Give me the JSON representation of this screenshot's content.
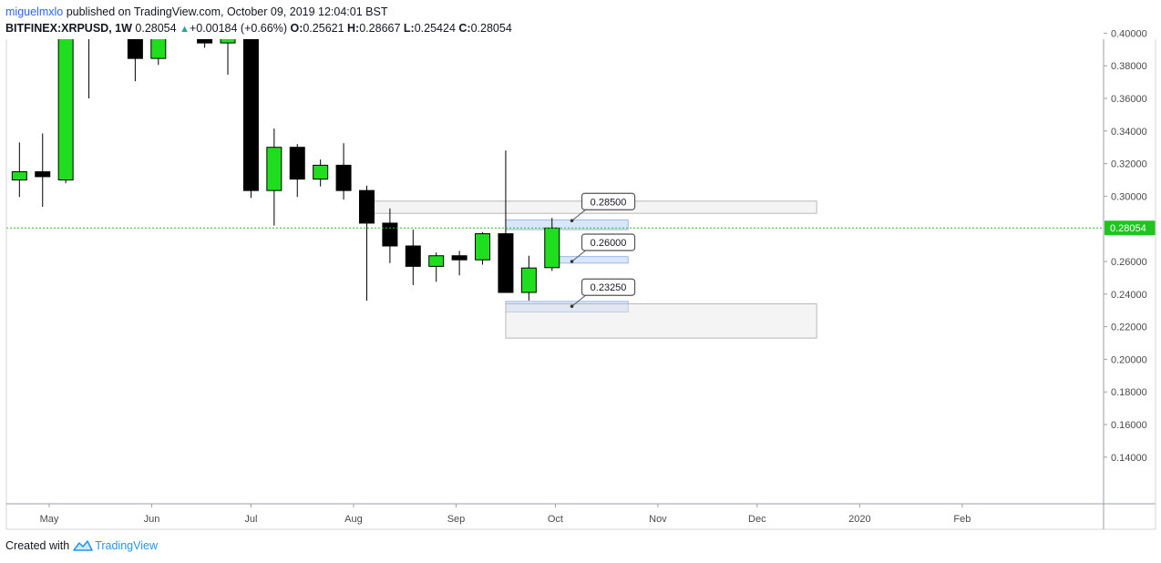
{
  "header": {
    "author": "miguelmxlo",
    "published_text": " published on TradingView.com, October 09, 2019 12:04:01 BST",
    "symbol": "BITFINEX:XRPUSD",
    "interval": ", 1W",
    "price": "0.28054",
    "change_arrow": "▲",
    "change": "+0.00184 (+0.66%)",
    "o_label": "O:",
    "o_value": "0.25621",
    "h_label": "H:",
    "h_value": "0.28667",
    "l_label": "L:",
    "l_value": "0.25424",
    "c_label": "C:",
    "c_value": "0.28054"
  },
  "footer": {
    "created_with": "Created with",
    "brand": "TradingView"
  },
  "colors": {
    "bull": "#1ede1e",
    "bear": "#000000",
    "wick": "#000000",
    "last_price": "#21c321",
    "zone_gray": "#e6e6e6",
    "zone_blue": "#bcd3f5",
    "author": "#2962ff"
  },
  "chart_data": {
    "type": "candlestick",
    "ylim": [
      0.128,
      0.41
    ],
    "y_ticks": [
      "0.40000",
      "0.38000",
      "0.36000",
      "0.34000",
      "0.32000",
      "0.30000",
      "0.26000",
      "0.24000",
      "0.22000",
      "0.20000",
      "0.18000",
      "0.16000",
      "0.14000"
    ],
    "x_ticks": [
      {
        "label": "May",
        "date": "2019-05-01"
      },
      {
        "label": "Jun",
        "date": "2019-06-01"
      },
      {
        "label": "Jul",
        "date": "2019-07-01"
      },
      {
        "label": "Aug",
        "date": "2019-08-01"
      },
      {
        "label": "Sep",
        "date": "2019-09-01"
      },
      {
        "label": "Oct",
        "date": "2019-10-01"
      },
      {
        "label": "Nov",
        "date": "2019-11-01"
      },
      {
        "label": "Dec",
        "date": "2019-12-01"
      },
      {
        "label": "2020",
        "date": "2020-01-01"
      },
      {
        "label": "Feb",
        "date": "2020-02-01"
      }
    ],
    "last_price": "0.28054",
    "candles": [
      {
        "date": "2019-04-22",
        "o": 0.31,
        "h": 0.333,
        "l": 0.2995,
        "c": 0.315
      },
      {
        "date": "2019-04-29",
        "o": 0.315,
        "h": 0.3385,
        "l": 0.2935,
        "c": 0.312
      },
      {
        "date": "2019-05-06",
        "o": 0.31,
        "h": 0.42,
        "l": 0.308,
        "c": 0.42
      },
      {
        "date": "2019-05-13",
        "o": 0.42,
        "h": 0.42,
        "l": 0.36,
        "c": 0.409
      },
      {
        "date": "2019-05-20",
        "o": 0.409,
        "h": 0.42,
        "l": 0.4,
        "c": 0.42
      },
      {
        "date": "2019-05-27",
        "o": 0.42,
        "h": 0.42,
        "l": 0.3705,
        "c": 0.3845
      },
      {
        "date": "2019-06-03",
        "o": 0.3845,
        "h": 0.42,
        "l": 0.3805,
        "c": 0.42
      },
      {
        "date": "2019-06-17",
        "o": 0.42,
        "h": 0.42,
        "l": 0.391,
        "c": 0.394
      },
      {
        "date": "2019-06-24",
        "o": 0.394,
        "h": 0.404,
        "l": 0.3745,
        "c": 0.3985
      },
      {
        "date": "2019-07-01",
        "o": 0.3985,
        "h": 0.4075,
        "l": 0.299,
        "c": 0.3035
      },
      {
        "date": "2019-07-08",
        "o": 0.3035,
        "h": 0.3415,
        "l": 0.282,
        "c": 0.33
      },
      {
        "date": "2019-07-15",
        "o": 0.33,
        "h": 0.332,
        "l": 0.2995,
        "c": 0.3105
      },
      {
        "date": "2019-07-22",
        "o": 0.3105,
        "h": 0.3225,
        "l": 0.306,
        "c": 0.319
      },
      {
        "date": "2019-07-29",
        "o": 0.319,
        "h": 0.3325,
        "l": 0.298,
        "c": 0.3035
      },
      {
        "date": "2019-08-05",
        "o": 0.3035,
        "h": 0.3065,
        "l": 0.236,
        "c": 0.2835
      },
      {
        "date": "2019-08-12",
        "o": 0.2835,
        "h": 0.2925,
        "l": 0.259,
        "c": 0.2695
      },
      {
        "date": "2019-08-19",
        "o": 0.2695,
        "h": 0.2795,
        "l": 0.2455,
        "c": 0.257
      },
      {
        "date": "2019-08-26",
        "o": 0.257,
        "h": 0.2655,
        "l": 0.2475,
        "c": 0.2635
      },
      {
        "date": "2019-09-02",
        "o": 0.2635,
        "h": 0.2665,
        "l": 0.2515,
        "c": 0.261
      },
      {
        "date": "2019-09-09",
        "o": 0.261,
        "h": 0.278,
        "l": 0.258,
        "c": 0.277
      },
      {
        "date": "2019-09-16",
        "o": 0.277,
        "h": 0.328,
        "l": 0.241,
        "c": 0.241
      },
      {
        "date": "2019-09-23",
        "o": 0.241,
        "h": 0.2635,
        "l": 0.236,
        "c": 0.256
      },
      {
        "date": "2019-09-30",
        "o": 0.2562,
        "h": 0.2867,
        "l": 0.2542,
        "c": 0.2805
      }
    ],
    "zones": [
      {
        "from": "2019-08-05",
        "to": "2019-12-19",
        "top": 0.297,
        "bottom": 0.2895,
        "color": "gray"
      },
      {
        "from": "2019-09-16",
        "to": "2019-10-23",
        "top": 0.2855,
        "bottom": 0.2795,
        "color": "blue"
      },
      {
        "from": "2019-09-30",
        "to": "2019-10-23",
        "top": 0.263,
        "bottom": 0.259,
        "color": "blue"
      },
      {
        "from": "2019-09-16",
        "to": "2019-10-23",
        "top": 0.2355,
        "bottom": 0.229,
        "color": "blue"
      },
      {
        "from": "2019-09-16",
        "to": "2019-12-19",
        "top": 0.234,
        "bottom": 0.213,
        "color": "gray"
      }
    ],
    "callouts": [
      {
        "text": "0.28500",
        "date": "2019-10-06",
        "price": 0.285
      },
      {
        "text": "0.26000",
        "date": "2019-10-06",
        "price": 0.26
      },
      {
        "text": "0.23250",
        "date": "2019-10-06",
        "price": 0.2325
      }
    ]
  }
}
